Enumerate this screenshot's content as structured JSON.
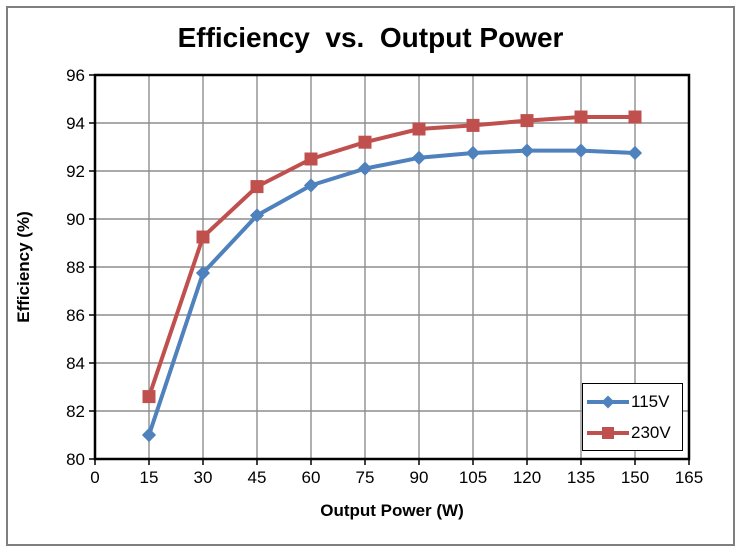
{
  "chart_data": {
    "type": "line",
    "title": "Efficiency  vs.  Output Power",
    "xlabel": "Output Power (W)",
    "ylabel": "Efficiency (%)",
    "xlim": [
      0,
      165
    ],
    "ylim": [
      80,
      96
    ],
    "x_ticks": [
      0,
      15,
      30,
      45,
      60,
      75,
      90,
      105,
      120,
      135,
      150,
      165
    ],
    "y_ticks": [
      80,
      82,
      84,
      86,
      88,
      90,
      92,
      94,
      96
    ],
    "grid": true,
    "legend_position": "inside-bottom-right",
    "x": [
      15,
      30,
      45,
      60,
      75,
      90,
      105,
      120,
      135,
      150
    ],
    "series": [
      {
        "name": "115V",
        "color": "#4F81BD",
        "marker": "diamond",
        "values": [
          81.0,
          87.75,
          90.15,
          91.4,
          92.1,
          92.55,
          92.75,
          92.85,
          92.85,
          92.75
        ]
      },
      {
        "name": "230V",
        "color": "#C0504D",
        "marker": "square",
        "values": [
          82.6,
          89.25,
          91.35,
          92.5,
          93.2,
          93.75,
          93.9,
          94.1,
          94.25,
          94.25
        ]
      }
    ]
  },
  "colors": {
    "background": "#FFFFFF",
    "frame_border": "#7F7F7F",
    "plot_border": "#000000",
    "gridline": "#8E8E8E",
    "tick": "#000000",
    "text": "#000000"
  }
}
